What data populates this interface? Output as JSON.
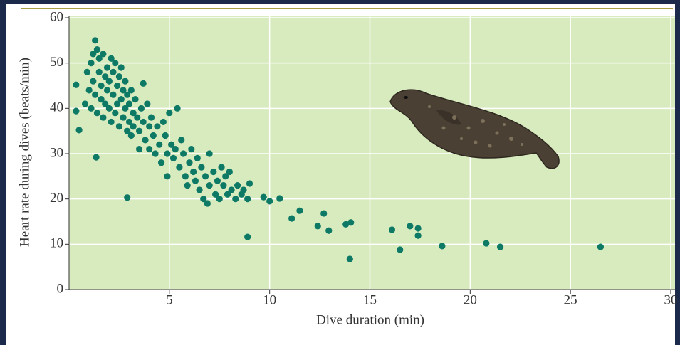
{
  "chart_data": {
    "type": "scatter",
    "x_label": "Dive duration (min)",
    "y_label": "Heart rate during dives (beats/min)",
    "color": "#0e7a66",
    "background": "#d8ebbf",
    "grid": true,
    "xlim": [
      0,
      30
    ],
    "ylim": [
      0,
      60
    ],
    "xticks": [
      5,
      10,
      15,
      20,
      25,
      30
    ],
    "yticks": [
      0,
      10,
      20,
      30,
      40,
      50,
      60
    ],
    "x": [
      0.35,
      0.35,
      0.5,
      1.35,
      2.9,
      3.7,
      8.9,
      9.7,
      10.0,
      10.5,
      11.1,
      11.5,
      12.4,
      12.7,
      12.95,
      13.8,
      14.05,
      14.0,
      16.1,
      16.5,
      17.0,
      17.4,
      17.4,
      18.6,
      20.8,
      21.5,
      26.5,
      0.8,
      0.9,
      1.0,
      1.1,
      1.1,
      1.2,
      1.2,
      1.3,
      1.3,
      1.4,
      1.4,
      1.5,
      1.5,
      1.6,
      1.6,
      1.7,
      1.7,
      1.8,
      1.8,
      1.9,
      1.9,
      2.0,
      2.0,
      2.1,
      2.1,
      2.2,
      2.2,
      2.3,
      2.3,
      2.4,
      2.4,
      2.5,
      2.5,
      2.6,
      2.6,
      2.7,
      2.7,
      2.8,
      2.8,
      2.9,
      2.9,
      3.0,
      3.0,
      3.1,
      3.1,
      3.2,
      3.2,
      3.3,
      3.4,
      3.5,
      3.5,
      3.6,
      3.7,
      3.8,
      3.9,
      4.0,
      4.0,
      4.1,
      4.2,
      4.3,
      4.4,
      4.5,
      4.6,
      4.7,
      4.8,
      4.9,
      4.9,
      5.0,
      5.1,
      5.2,
      5.3,
      5.4,
      5.5,
      5.6,
      5.7,
      5.8,
      5.9,
      6.0,
      6.1,
      6.2,
      6.3,
      6.4,
      6.5,
      6.6,
      6.7,
      6.8,
      6.9,
      7.0,
      7.0,
      7.2,
      7.3,
      7.4,
      7.5,
      7.6,
      7.7,
      7.8,
      7.9,
      8.0,
      8.1,
      8.3,
      8.4,
      8.6,
      8.7,
      9.0,
      8.9
    ],
    "values": [
      45.2,
      39.4,
      35.2,
      29.2,
      20.3,
      45.5,
      11.6,
      20.4,
      19.5,
      20.1,
      15.7,
      17.4,
      14.0,
      16.8,
      13.0,
      14.4,
      14.8,
      6.75,
      13.2,
      8.8,
      14.0,
      13.5,
      11.9,
      9.6,
      10.2,
      9.4,
      9.4,
      41,
      48,
      44,
      50,
      40,
      52,
      46,
      55,
      43,
      53,
      39,
      48,
      51,
      42,
      45,
      52,
      38,
      47,
      41,
      49,
      44,
      46,
      40,
      51,
      37,
      48,
      43,
      50,
      39,
      45,
      41,
      47,
      36,
      49,
      42,
      44,
      38,
      46,
      40,
      43,
      35,
      41,
      37,
      44,
      34,
      39,
      36,
      42,
      38,
      35,
      31,
      40,
      37,
      33,
      41,
      36,
      31,
      38,
      34,
      30,
      36,
      32,
      28,
      37,
      34,
      30,
      25,
      39,
      32,
      29,
      31,
      40,
      27,
      33,
      30,
      25,
      23,
      28,
      31,
      26,
      24,
      29,
      22,
      27,
      20,
      25,
      19,
      23,
      30,
      26,
      21,
      24,
      20,
      27,
      23,
      25,
      21,
      26,
      22,
      20,
      23,
      21,
      22,
      23.4,
      20
    ]
  }
}
